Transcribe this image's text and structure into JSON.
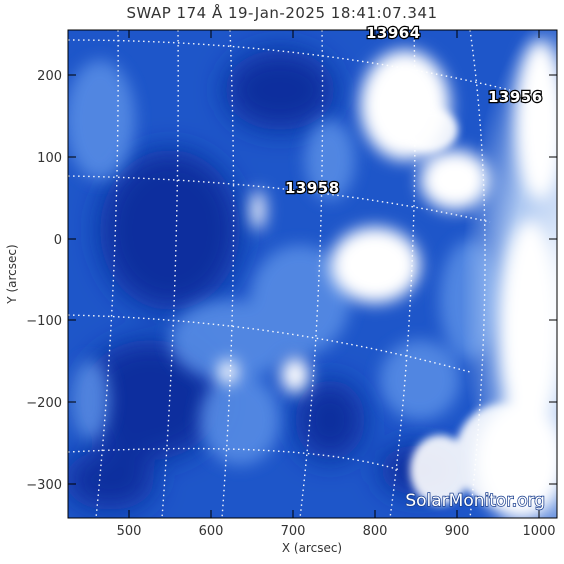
{
  "title": "SWAP 174 Å 19-Jan-2025 18:41:07.341",
  "x_axis": {
    "label": "X (arcsec)",
    "ticks": [
      "500",
      "600",
      "700",
      "800",
      "900",
      "1000"
    ]
  },
  "y_axis": {
    "label": "Y (arcsec)",
    "ticks": [
      "200",
      "100",
      "0",
      "−100",
      "−200",
      "−300"
    ]
  },
  "regions": [
    "13964",
    "13956",
    "13958"
  ],
  "watermark": "SolarMonitor.org",
  "colors": {
    "deep": "#0a2e9e",
    "mid": "#2f6cd8",
    "bright": "#9ec6f5",
    "white": "#ffffff",
    "frame": "#000000"
  }
}
